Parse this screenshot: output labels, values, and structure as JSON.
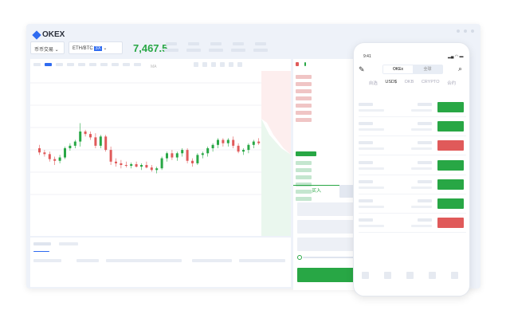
{
  "app": {
    "name": "OKEX"
  },
  "header": {
    "market_select": "币币交易",
    "pair": "ETH/BTC",
    "leverage": "3X",
    "last_price": "7,467.5"
  },
  "toolbar": {
    "indicator": "MA"
  },
  "orderbook": {
    "buy_tab": "买入"
  },
  "colors": {
    "up": "#28a745",
    "down": "#e05a5a",
    "accent": "#2f6bf0"
  },
  "candles": [
    [
      60,
      64,
      52,
      55
    ],
    [
      55,
      58,
      50,
      53
    ],
    [
      53,
      56,
      44,
      47
    ],
    [
      47,
      50,
      40,
      45
    ],
    [
      45,
      52,
      42,
      49
    ],
    [
      49,
      62,
      47,
      60
    ],
    [
      60,
      66,
      57,
      63
    ],
    [
      63,
      70,
      60,
      68
    ],
    [
      68,
      90,
      62,
      80
    ],
    [
      80,
      82,
      74,
      77
    ],
    [
      77,
      80,
      70,
      73
    ],
    [
      73,
      78,
      60,
      63
    ],
    [
      63,
      76,
      60,
      74
    ],
    [
      74,
      76,
      56,
      58
    ],
    [
      58,
      62,
      40,
      44
    ],
    [
      44,
      48,
      38,
      42
    ],
    [
      42,
      46,
      36,
      40
    ],
    [
      40,
      44,
      37,
      39
    ],
    [
      39,
      43,
      36,
      41
    ],
    [
      41,
      44,
      37,
      38
    ],
    [
      38,
      42,
      34,
      40
    ],
    [
      40,
      44,
      36,
      37
    ],
    [
      37,
      40,
      32,
      34
    ],
    [
      34,
      38,
      30,
      36
    ],
    [
      36,
      50,
      34,
      48
    ],
    [
      48,
      56,
      44,
      54
    ],
    [
      54,
      58,
      46,
      49
    ],
    [
      49,
      56,
      45,
      54
    ],
    [
      54,
      60,
      50,
      58
    ],
    [
      58,
      60,
      42,
      45
    ],
    [
      45,
      48,
      38,
      42
    ],
    [
      42,
      54,
      40,
      52
    ],
    [
      52,
      56,
      48,
      54
    ],
    [
      54,
      62,
      50,
      60
    ],
    [
      60,
      66,
      56,
      64
    ],
    [
      64,
      72,
      60,
      70
    ],
    [
      70,
      72,
      62,
      66
    ],
    [
      66,
      72,
      62,
      70
    ],
    [
      70,
      74,
      60,
      63
    ],
    [
      63,
      66,
      54,
      56
    ],
    [
      56,
      60,
      52,
      58
    ],
    [
      58,
      66,
      54,
      64
    ],
    [
      64,
      70,
      60,
      68
    ],
    [
      68,
      72,
      64,
      66
    ]
  ],
  "phone": {
    "time": "9:41",
    "segments": [
      "OKEx",
      "全球"
    ],
    "tabs": [
      "自选",
      "USD$",
      "OKB",
      "CRYPTO",
      "合约"
    ],
    "rows": [
      "up",
      "up",
      "down",
      "up",
      "up",
      "up",
      "down"
    ]
  }
}
